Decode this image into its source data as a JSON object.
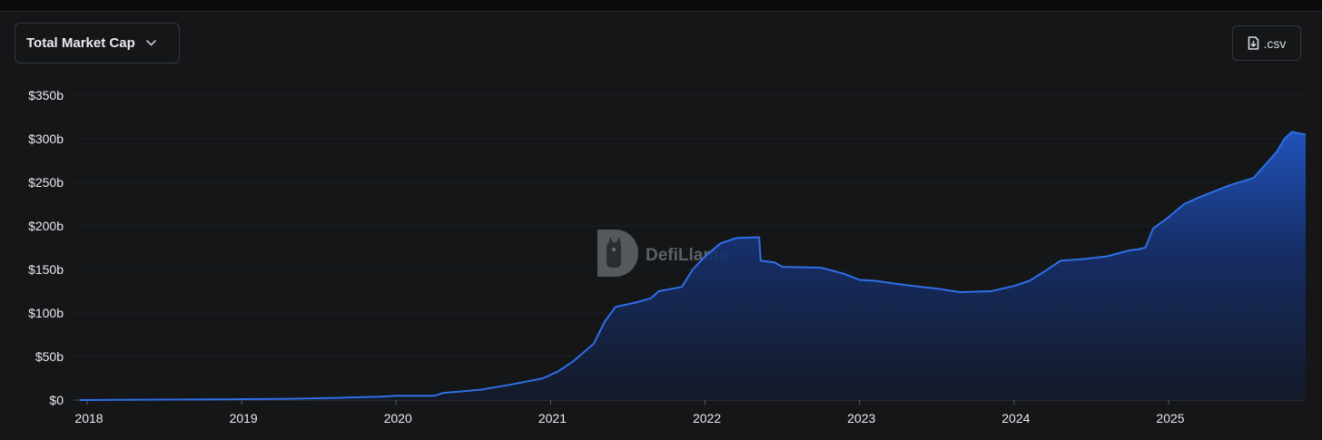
{
  "controls": {
    "metric_selector": {
      "label": "Total Market Cap",
      "icon": "chevron-down-icon"
    },
    "csv_button": {
      "label": ".csv",
      "icon": "file-download-icon"
    }
  },
  "watermark": {
    "text": "DefiLlama",
    "icon": "defillama-logo-icon"
  },
  "colors": {
    "line": "#2f6fe6",
    "area_top": "#1f4fb0",
    "background": "#141618",
    "text": "#e8eaed"
  },
  "chart_data": {
    "type": "area",
    "title": "",
    "xlabel": "",
    "ylabel": "",
    "grid": true,
    "xlim": [
      2017.95,
      2025.9
    ],
    "ylim": [
      0,
      350
    ],
    "x_ticks": [
      2018,
      2019,
      2020,
      2021,
      2022,
      2023,
      2024,
      2025
    ],
    "x_tick_labels": [
      "2018",
      "2019",
      "2020",
      "2021",
      "2022",
      "2023",
      "2024",
      "2025"
    ],
    "y_ticks": [
      0,
      50,
      100,
      150,
      200,
      250,
      300,
      350
    ],
    "y_tick_labels": [
      "$0",
      "$50b",
      "$100b",
      "$150b",
      "$200b",
      "$250b",
      "$300b",
      "$350b"
    ],
    "unit": "USD billions",
    "series": [
      {
        "x": [
          2017.95,
          2018.5,
          2019.0,
          2019.3,
          2019.6,
          2019.9,
          2020.0,
          2020.25,
          2020.3,
          2020.55,
          2020.75,
          2020.95,
          2021.05,
          2021.15,
          2021.28,
          2021.35,
          2021.42,
          2021.55,
          2021.65,
          2021.7,
          2021.85,
          2021.92,
          2022.0,
          2022.1,
          2022.2,
          2022.35,
          2022.36,
          2022.45,
          2022.5,
          2022.75,
          2022.9,
          2023.0,
          2023.1,
          2023.3,
          2023.5,
          2023.65,
          2023.85,
          2024.0,
          2024.1,
          2024.2,
          2024.3,
          2024.45,
          2024.6,
          2024.75,
          2024.8,
          2024.85,
          2024.9,
          2025.0,
          2025.1,
          2025.2,
          2025.3,
          2025.4,
          2025.55,
          2025.7,
          2025.75,
          2025.8,
          2025.85,
          2025.9
        ],
        "values": [
          0,
          0.5,
          1,
          1.5,
          2.5,
          4,
          5,
          5,
          8,
          12,
          18,
          25,
          33,
          45,
          65,
          90,
          107,
          112,
          117,
          125,
          130,
          150,
          165,
          180,
          186,
          187,
          160,
          158,
          153,
          152,
          145,
          138,
          137,
          132,
          128,
          124,
          125,
          131,
          137,
          148,
          160,
          162,
          165,
          172,
          173,
          175,
          197,
          210,
          225,
          233,
          240,
          247,
          255,
          285,
          300,
          308,
          306,
          305
        ]
      }
    ]
  }
}
